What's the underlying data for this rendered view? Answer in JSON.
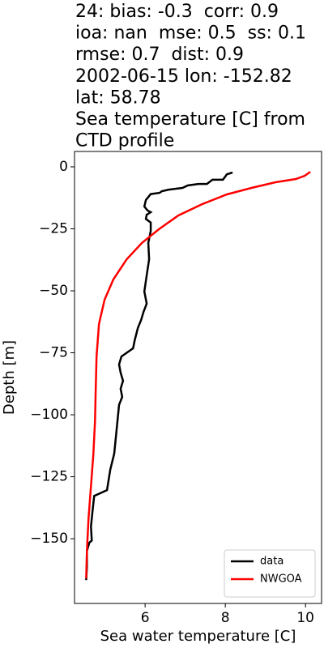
{
  "chart_data": {
    "type": "line",
    "title": [
      "24: bias: -0.3  corr: 0.9",
      "ioa: nan  mse: 0.5  ss: 0.1",
      "rmse: 0.7  dist: 0.9",
      "2002-06-15 lon: -152.82",
      "lat: 58.78",
      "Sea temperature [C] from",
      "CTD profile"
    ],
    "x_label": "Sea water temperature [C]",
    "y_label": "Depth [m]",
    "xlim": [
      4.24,
      10.4
    ],
    "ylim": [
      -176.1,
      6.2
    ],
    "xticks": [
      6,
      8,
      10
    ],
    "yticks": [
      {
        "value": 0,
        "label": "0"
      },
      {
        "value": -25,
        "label": "−25"
      },
      {
        "value": -50,
        "label": "−50"
      },
      {
        "value": -75,
        "label": "−75"
      },
      {
        "value": -100,
        "label": "−100"
      },
      {
        "value": -125,
        "label": "−125"
      },
      {
        "value": -150,
        "label": "−150"
      }
    ],
    "legend": "lower right",
    "series": [
      {
        "name": "data",
        "color": "#000000",
        "x": [
          8.18,
          8.04,
          7.94,
          7.68,
          7.54,
          7.33,
          7.07,
          6.93,
          6.59,
          6.42,
          6.36,
          6.14,
          6.02,
          5.98,
          6.06,
          6.14,
          6.04,
          6.02,
          6.14,
          6.14,
          6.08,
          6.1,
          6.04,
          5.98,
          6.04,
          5.96,
          5.9,
          5.82,
          5.74,
          5.7,
          5.41,
          5.35,
          5.39,
          5.45,
          5.39,
          5.43,
          5.35,
          5.31,
          5.23,
          5.13,
          5.05,
          4.73,
          4.69,
          4.65,
          4.67,
          4.61,
          4.55,
          4.55,
          4.53
        ],
        "values": [
          -2.3,
          -3,
          -5.2,
          -5.2,
          -6.9,
          -6.9,
          -7.5,
          -8.5,
          -9.2,
          -9.8,
          -10.5,
          -11,
          -13.4,
          -16,
          -17.6,
          -18.3,
          -19.3,
          -21,
          -22.5,
          -25.8,
          -30.7,
          -37.3,
          -43.8,
          -50.3,
          -55.2,
          -58.5,
          -61.8,
          -65,
          -70,
          -73.2,
          -76.5,
          -79.7,
          -83,
          -86.3,
          -89.5,
          -92.8,
          -96,
          -102.6,
          -115.7,
          -122.2,
          -130.4,
          -132.7,
          -138.6,
          -145.1,
          -150.7,
          -151.6,
          -154.9,
          -161.4,
          -166.7
        ]
      },
      {
        "name": "NWGOA",
        "color": "#ff0000",
        "x": [
          10.12,
          9.98,
          9.76,
          9.25,
          8.65,
          8.04,
          7.43,
          6.83,
          6.34,
          5.92,
          5.54,
          5.21,
          4.99,
          4.85,
          4.79,
          4.77,
          4.75,
          4.71,
          4.65,
          4.59,
          4.55,
          4.53
        ],
        "values": [
          -2,
          -3.6,
          -4.9,
          -6.2,
          -8.5,
          -11.1,
          -15,
          -19.6,
          -25.2,
          -30.7,
          -37.3,
          -45.4,
          -53.6,
          -63.4,
          -76.5,
          -89.5,
          -102.6,
          -115.7,
          -128.8,
          -141.8,
          -154.9,
          -166
        ]
      }
    ]
  }
}
